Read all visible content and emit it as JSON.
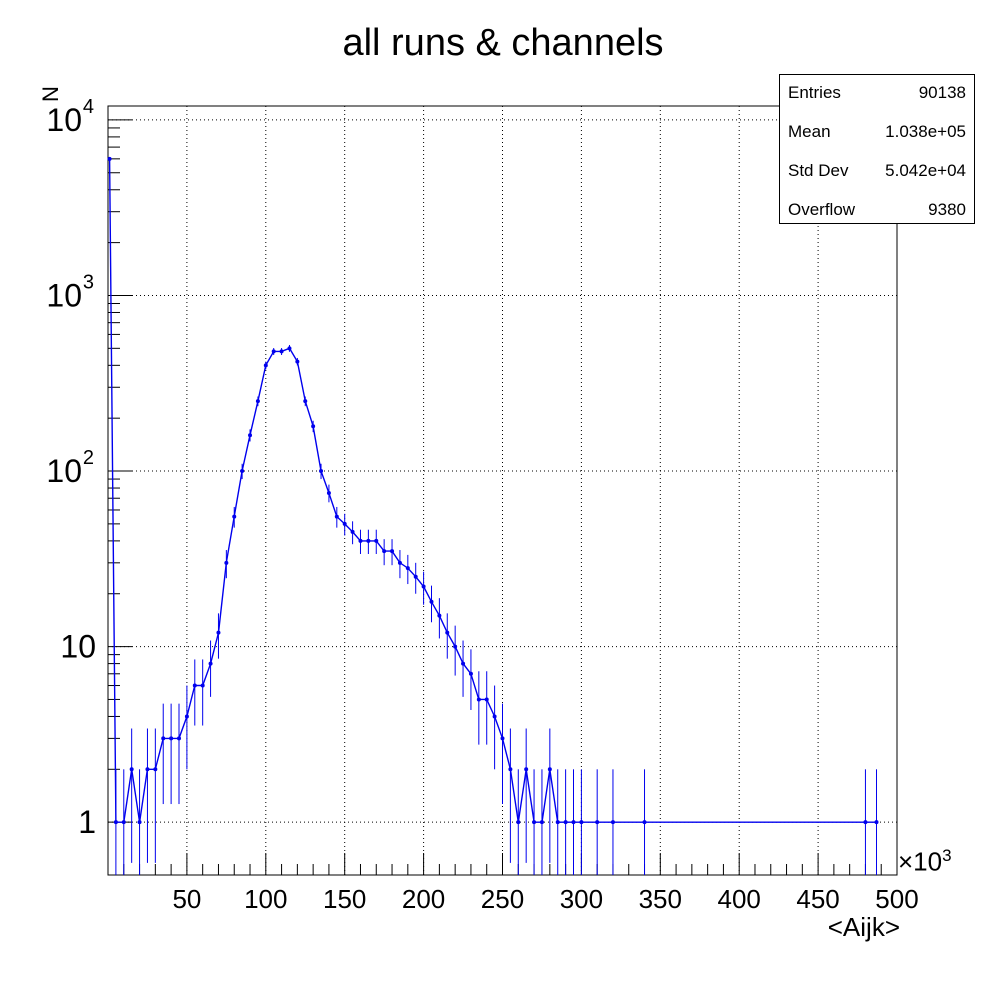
{
  "chart_data": {
    "type": "histogram",
    "title": "all runs & channels",
    "xlabel": "<Aijk>",
    "ylabel": "N",
    "x_multiplier": "×10",
    "x_multiplier_exp": "3",
    "xlim": [
      0,
      500
    ],
    "ylim": [
      0.5,
      12000
    ],
    "yscale": "log",
    "grid": true,
    "x_ticks": [
      "50",
      "100",
      "150",
      "200",
      "250",
      "300",
      "350",
      "400",
      "450",
      "500"
    ],
    "y_ticks": [
      {
        "value": 1,
        "label": "1"
      },
      {
        "value": 10,
        "label": "10"
      },
      {
        "value": 100,
        "label": "10",
        "exp": "2"
      },
      {
        "value": 1000,
        "label": "10",
        "exp": "3"
      },
      {
        "value": 10000,
        "label": "10",
        "exp": "4"
      }
    ],
    "series": [
      {
        "color": "#0000ee",
        "x": [
          1,
          5,
          10,
          15,
          20,
          25,
          30,
          35,
          40,
          45,
          50,
          55,
          60,
          65,
          70,
          75,
          80,
          85,
          90,
          95,
          100,
          105,
          110,
          115,
          120,
          125,
          130,
          135,
          140,
          145,
          150,
          155,
          160,
          165,
          170,
          175,
          180,
          185,
          190,
          195,
          200,
          205,
          210,
          215,
          220,
          225,
          230,
          235,
          240,
          245,
          250,
          255,
          260,
          265,
          270,
          275,
          280,
          285,
          290,
          295,
          300,
          310,
          320,
          340,
          480,
          487
        ],
        "y": [
          6000,
          1,
          1,
          2,
          1,
          2,
          2,
          3,
          3,
          3,
          4,
          6,
          6,
          8,
          12,
          30,
          55,
          100,
          160,
          250,
          400,
          480,
          480,
          500,
          420,
          250,
          180,
          100,
          75,
          55,
          50,
          45,
          40,
          40,
          40,
          35,
          35,
          30,
          28,
          25,
          22,
          18,
          15,
          12,
          10,
          8,
          7,
          5,
          5,
          4,
          3,
          2,
          1,
          2,
          1,
          1,
          2,
          1,
          1,
          1,
          1,
          1,
          1,
          1,
          1,
          1
        ]
      }
    ]
  },
  "stats": {
    "rows": [
      {
        "label": "Entries",
        "value": "90138"
      },
      {
        "label": "Mean",
        "value": "1.038e+05"
      },
      {
        "label": "Std Dev",
        "value": "5.042e+04"
      },
      {
        "label": "Overflow",
        "value": "9380"
      }
    ]
  }
}
